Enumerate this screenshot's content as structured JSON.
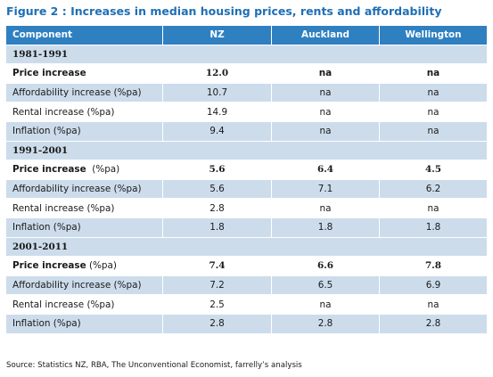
{
  "figure": {
    "title": "Figure 2 : Increases in median housing prices, rents and affordability",
    "source": "Source: Statistics NZ, RBA, The Unconventional Economist, farrelly’s analysis"
  },
  "header": [
    "Component",
    "NZ",
    "Auckland",
    "Wellington"
  ],
  "periods": [
    {
      "label": "1981-1991",
      "rows": [
        {
          "label": "Price increase",
          "bold_label": "Price increase",
          "suffix": "",
          "values": [
            "12.0",
            "na",
            "na"
          ],
          "emph": true
        },
        {
          "label": "Affordability increase (%pa)",
          "values": [
            "10.7",
            "na",
            "na"
          ]
        },
        {
          "label": "Rental increase (%pa)",
          "values": [
            "14.9",
            "na",
            "na"
          ]
        },
        {
          "label": "Inflation (%pa)",
          "values": [
            "9.4",
            "na",
            "na"
          ]
        }
      ]
    },
    {
      "label": "1991-2001",
      "rows": [
        {
          "label": "Price increase (%pa)",
          "bold_label": "Price increase",
          "suffix": "  (%pa)",
          "values": [
            "5.6",
            "6.4",
            "4.5"
          ],
          "emph": true
        },
        {
          "label": "Affordability increase (%pa)",
          "values": [
            "5.6",
            "7.1",
            "6.2"
          ]
        },
        {
          "label": "Rental increase (%pa)",
          "values": [
            "2.8",
            "na",
            "na"
          ]
        },
        {
          "label": "Inflation (%pa)",
          "values": [
            "1.8",
            "1.8",
            "1.8"
          ]
        }
      ]
    },
    {
      "label": "2001-2011",
      "rows": [
        {
          "label": "Price increase (%pa)",
          "bold_label": "Price increase",
          "suffix": " (%pa)",
          "values": [
            "7.4",
            "6.6",
            "7.8"
          ],
          "emph": true
        },
        {
          "label": "Affordability increase (%pa)",
          "values": [
            "7.2",
            "6.5",
            "6.9"
          ]
        },
        {
          "label": "Rental increase (%pa)",
          "values": [
            "2.5",
            "na",
            "na"
          ]
        },
        {
          "label": "Inflation (%pa)",
          "values": [
            "2.8",
            "2.8",
            "2.8"
          ]
        }
      ]
    }
  ],
  "colors": {
    "header_bg": "#2f80c0",
    "band_bg": "#ccdceb",
    "title": "#1e6fb4"
  }
}
